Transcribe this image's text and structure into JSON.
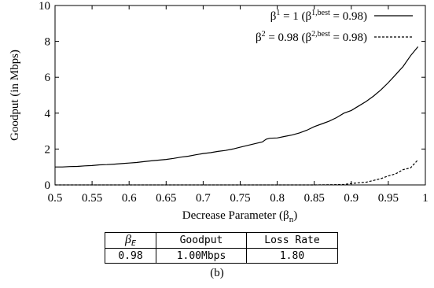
{
  "chart_data": {
    "type": "line",
    "xlabel": "Decrease Parameter (β",
    "xlabel_sub": "n",
    "xlabel_close": ")",
    "ylabel": "Goodput (in Mbps)",
    "xlim": [
      0.5,
      1.0
    ],
    "ylim": [
      0,
      10
    ],
    "xticks": [
      "0.5",
      "0.55",
      "0.6",
      "0.65",
      "0.7",
      "0.75",
      "0.8",
      "0.85",
      "0.9",
      "0.95",
      "1"
    ],
    "yticks": [
      "0",
      "2",
      "4",
      "6",
      "8",
      "10"
    ],
    "grid": false,
    "legend_position": "top-right",
    "series": [
      {
        "name": "β¹ = 1 (β^{1,best} = 0.98)",
        "legend": {
          "b": "β",
          "s1": "1",
          "m1": " = 1 (β",
          "s2": "1,best",
          "m2": " = 0.98)"
        },
        "style": "solid",
        "points": [
          [
            0.5,
            1.0
          ],
          [
            0.51,
            1.0
          ],
          [
            0.52,
            1.02
          ],
          [
            0.53,
            1.03
          ],
          [
            0.54,
            1.06
          ],
          [
            0.55,
            1.08
          ],
          [
            0.56,
            1.12
          ],
          [
            0.57,
            1.13
          ],
          [
            0.58,
            1.16
          ],
          [
            0.59,
            1.19
          ],
          [
            0.6,
            1.22
          ],
          [
            0.61,
            1.25
          ],
          [
            0.62,
            1.3
          ],
          [
            0.63,
            1.34
          ],
          [
            0.64,
            1.38
          ],
          [
            0.65,
            1.42
          ],
          [
            0.66,
            1.48
          ],
          [
            0.67,
            1.55
          ],
          [
            0.68,
            1.6
          ],
          [
            0.69,
            1.68
          ],
          [
            0.7,
            1.75
          ],
          [
            0.71,
            1.8
          ],
          [
            0.72,
            1.87
          ],
          [
            0.73,
            1.92
          ],
          [
            0.74,
            2.0
          ],
          [
            0.75,
            2.1
          ],
          [
            0.76,
            2.2
          ],
          [
            0.77,
            2.3
          ],
          [
            0.78,
            2.4
          ],
          [
            0.785,
            2.55
          ],
          [
            0.79,
            2.6
          ],
          [
            0.8,
            2.62
          ],
          [
            0.81,
            2.7
          ],
          [
            0.82,
            2.78
          ],
          [
            0.83,
            2.9
          ],
          [
            0.84,
            3.05
          ],
          [
            0.85,
            3.25
          ],
          [
            0.86,
            3.4
          ],
          [
            0.87,
            3.55
          ],
          [
            0.88,
            3.75
          ],
          [
            0.89,
            4.0
          ],
          [
            0.9,
            4.15
          ],
          [
            0.91,
            4.4
          ],
          [
            0.92,
            4.65
          ],
          [
            0.93,
            4.95
          ],
          [
            0.94,
            5.3
          ],
          [
            0.95,
            5.7
          ],
          [
            0.96,
            6.15
          ],
          [
            0.97,
            6.6
          ],
          [
            0.98,
            7.2
          ],
          [
            0.99,
            7.7
          ]
        ]
      },
      {
        "name": "β² = 0.98 (β^{2,best} = 0.98)",
        "legend": {
          "b": "β",
          "s1": "2",
          "m1": " = 0.98 (β",
          "s2": "2,best",
          "m2": " = 0.98)"
        },
        "style": "dashed",
        "points": [
          [
            0.5,
            0.0
          ],
          [
            0.6,
            0.0
          ],
          [
            0.7,
            0.0
          ],
          [
            0.8,
            0.0
          ],
          [
            0.85,
            0.0
          ],
          [
            0.89,
            0.02
          ],
          [
            0.9,
            0.08
          ],
          [
            0.91,
            0.12
          ],
          [
            0.92,
            0.15
          ],
          [
            0.93,
            0.25
          ],
          [
            0.94,
            0.35
          ],
          [
            0.95,
            0.5
          ],
          [
            0.96,
            0.62
          ],
          [
            0.97,
            0.85
          ],
          [
            0.98,
            0.95
          ],
          [
            0.99,
            1.4
          ]
        ]
      }
    ]
  },
  "table": {
    "header": {
      "beta_symbol": "β",
      "beta_sub": "E",
      "goodput": "Goodput",
      "loss": "Loss Rate"
    },
    "row": {
      "beta": "0.98",
      "goodput": "1.00Mbps",
      "loss": "1.80"
    }
  },
  "caption": "(b)"
}
